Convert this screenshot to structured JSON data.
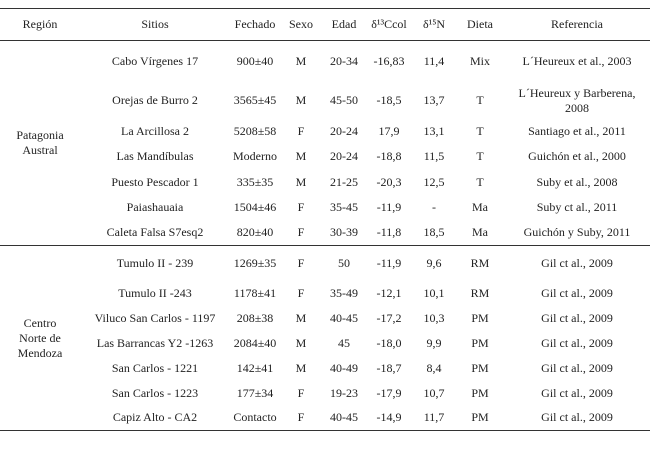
{
  "table": {
    "headers": [
      "Región",
      "Sitios",
      "Fechado",
      "Sexo",
      "Edad",
      "δ¹³Ccol",
      "δ¹⁵N",
      "Dieta",
      "Referencia"
    ],
    "groups": [
      {
        "region": "Patagonia Austral",
        "rows": [
          [
            "Cabo Vírgenes 17",
            "900±40",
            "M",
            "20-34",
            "-16,83",
            "11,4",
            "Mix",
            "L´Heureux et al., 2003"
          ],
          [
            "Orejas de Burro 2",
            "3565±45",
            "M",
            "45-50",
            "-18,5",
            "13,7",
            "T",
            "L´Heureux y Barberena, 2008"
          ],
          [
            "La Arcillosa 2",
            "5208±58",
            "F",
            "20-24",
            "17,9",
            "13,1",
            "T",
            "Santiago et al., 2011"
          ],
          [
            "Las Mandíbulas",
            "Moderno",
            "M",
            "20-24",
            "-18,8",
            "11,5",
            "T",
            "Guichón et al., 2000"
          ],
          [
            "Puesto Pescador 1",
            "335±35",
            "M",
            "21-25",
            "-20,3",
            "12,5",
            "T",
            "Suby et al., 2008"
          ],
          [
            "Paiashauaia",
            "1504±46",
            "F",
            "35-45",
            "-11,9",
            "-",
            "Ma",
            "Suby ct al., 2011"
          ],
          [
            "Caleta Falsa S7esq2",
            "820±40",
            "F",
            "30-39",
            "-11,8",
            "18,5",
            "Ma",
            "Guichón y Suby, 2011"
          ]
        ]
      },
      {
        "region": "Centro Norte de Mendoza",
        "rows": [
          [
            "Tumulo II - 239",
            "1269±35",
            "F",
            "50",
            "-11,9",
            "9,6",
            "RM",
            "Gil ct al., 2009"
          ],
          [
            "Tumulo II -243",
            "1178±41",
            "F",
            "35-49",
            "-12,1",
            "10,1",
            "RM",
            "Gil ct al., 2009"
          ],
          [
            "Viluco San Carlos - 1197",
            "208±38",
            "M",
            "40-45",
            "-17,2",
            "10,3",
            "PM",
            "Gil ct al., 2009"
          ],
          [
            "Las Barrancas Y2 -1263",
            "2084±40",
            "M",
            "45",
            "-18,0",
            "9,9",
            "PM",
            "Gil ct al., 2009"
          ],
          [
            "San Carlos - 1221",
            "142±41",
            "M",
            "40-49",
            "-18,7",
            "8,4",
            "PM",
            "Gil ct al., 2009"
          ],
          [
            "San Carlos - 1223",
            "177±34",
            "F",
            "19-23",
            "-17,9",
            "10,7",
            "PM",
            "Gil ct al., 2009"
          ],
          [
            "Capiz Alto - CA2",
            "Contacto",
            "F",
            "40-45",
            "-14,9",
            "11,7",
            "PM",
            "Gil ct al., 2009"
          ]
        ]
      }
    ]
  }
}
